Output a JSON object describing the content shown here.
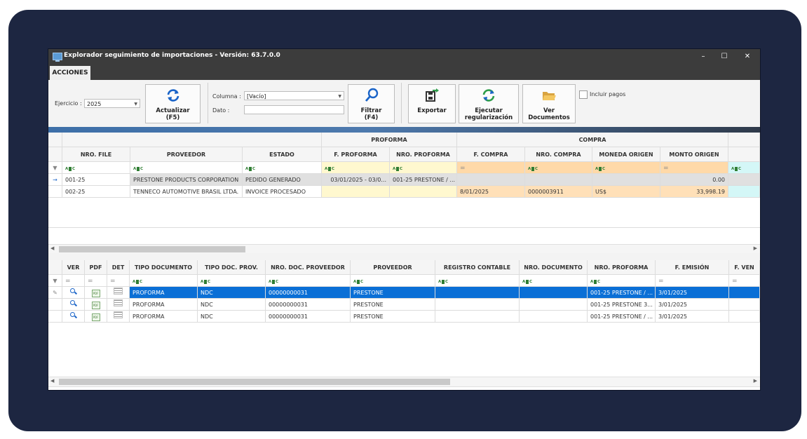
{
  "window": {
    "title": "Explorador seguimiento de importaciones - Versión: 63.7.0.0",
    "minimize_icon": "–",
    "maximize_icon": "☐",
    "close_icon": "✕"
  },
  "ribbon": {
    "tab": "ACCIONES",
    "ejercicio_label": "Ejercicio :",
    "ejercicio_value": "2025",
    "columna_label": "Columna :",
    "columna_value": "[Vacío]",
    "dato_label": "Dato :",
    "dato_value": "",
    "buttons": {
      "actualizar": "Actualizar\n(F5)",
      "filtrar": "Filtrar\n(F4)",
      "exportar": "Exportar",
      "ejecutar": "Ejecutar\nregularización",
      "ver_documentos": "Ver\nDocumentos"
    },
    "incluir_pagos": "Incluir pagos"
  },
  "top_grid": {
    "bands": {
      "proforma": "PROFORMA",
      "compra": "COMPRA"
    },
    "headers": [
      "NRO. FILE",
      "PROVEEDOR",
      "ESTADO",
      "F. PROFORMA",
      "NRO. PROFORMA",
      "F. COMPRA",
      "NRO. COMPRA",
      "MONEDA ORIGEN",
      "MONTO ORIGEN"
    ],
    "rows": [
      [
        "001-25",
        "PRESTONE PRODUCTS CORPORATION",
        "PEDIDO GENERADO",
        "03/01/2025 - 03/0...",
        "001-25 PRESTONE / ...",
        "",
        "",
        "",
        "0.00"
      ],
      [
        "002-25",
        "TENNECO AUTOMOTIVE BRASIL LTDA.",
        "INVOICE PROCESADO",
        "",
        "",
        "8/01/2025",
        "0000003911",
        "US$",
        "33,998.19"
      ]
    ]
  },
  "bottom_grid": {
    "headers": [
      "VER",
      "PDF",
      "DET",
      "TIPO DOCUMENTO",
      "TIPO DOC. PROV.",
      "NRO. DOC. PROVEEDOR",
      "PROVEEDOR",
      "REGISTRO CONTABLE",
      "NRO. DOCUMENTO",
      "NRO. PROFORMA",
      "F. EMISIÓN",
      "F. VEN"
    ],
    "rows": [
      [
        "PROFORMA",
        "NDC",
        "00000000031",
        "PRESTONE",
        "",
        "",
        "001-25 PRESTONE / ...",
        "3/01/2025",
        ""
      ],
      [
        "PROFORMA",
        "NDC",
        "00000000031",
        "PRESTONE",
        "",
        "",
        "001-25 PRESTONE 3...",
        "3/01/2025",
        ""
      ],
      [
        "PROFORMA",
        "NDC",
        "00000000031",
        "PRESTONE",
        "",
        "",
        "001-25 PRESTONE / ...",
        "3/01/2025",
        ""
      ]
    ]
  },
  "colors": {
    "frame": "#1d2641",
    "titlebar": "#3c3c3c",
    "selected_row": "#0a6fd6",
    "filter_yellow": "#fff8cf",
    "filter_orange": "#ffd9a8",
    "filter_cyan": "#d4f7f7",
    "row_orange": "#ffe0b8",
    "row_gray": "#e0e0e0"
  }
}
